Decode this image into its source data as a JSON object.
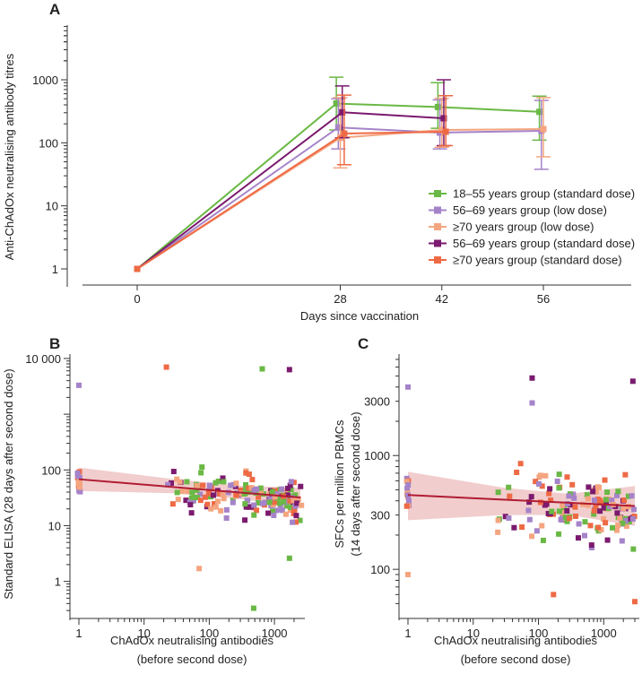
{
  "colors": {
    "green": "#6ab845",
    "lightpurple": "#a583c9",
    "salmon": "#f4a580",
    "purple": "#7b1a6e",
    "orange": "#ee6a45",
    "fitline": "#b01c33",
    "band": "#ecbcbc"
  },
  "chart_data": [
    {
      "panel": "A",
      "type": "line",
      "ylabel": "Anti-ChAdOx neutralising antibody titres",
      "xlabel": "Days since vaccination",
      "x": [
        0,
        28,
        42,
        56
      ],
      "x_tick_labels": [
        "0",
        "28",
        "42",
        "56"
      ],
      "y_scale": "log",
      "ylim": [
        0.8,
        5000
      ],
      "y_tick_labels": [
        "1",
        "10",
        "100",
        "1000"
      ],
      "series": [
        {
          "name": "18–55 years group (standard dose)",
          "color": "green",
          "values": [
            1,
            420,
            370,
            310
          ],
          "lower": [
            1,
            160,
            170,
            110
          ],
          "upper": [
            1,
            1100,
            900,
            550
          ]
        },
        {
          "name": "56–69 years group (low dose)",
          "color": "lightpurple",
          "values": [
            1,
            175,
            145,
            155
          ],
          "lower": [
            1,
            80,
            80,
            38
          ],
          "upper": [
            1,
            500,
            480,
            470
          ]
        },
        {
          "name": "≥70 years group (low dose)",
          "color": "salmon",
          "values": [
            1,
            120,
            160,
            165
          ],
          "lower": [
            1,
            40,
            85,
            60
          ],
          "upper": [
            1,
            520,
            510,
            520
          ]
        },
        {
          "name": "56–69 years group (standard dose)",
          "color": "purple",
          "values": [
            1,
            305,
            245,
            null
          ],
          "lower": [
            1,
            120,
            90,
            null
          ],
          "upper": [
            1,
            800,
            1000,
            null
          ]
        },
        {
          "name": "≥70 years group (standard dose)",
          "color": "orange",
          "values": [
            1,
            140,
            150,
            null
          ],
          "lower": [
            1,
            45,
            90,
            null
          ],
          "upper": [
            1,
            570,
            560,
            null
          ]
        }
      ]
    },
    {
      "panel": "B",
      "type": "scatter",
      "ylabel": "Standard ELISA (28 days after second dose)",
      "xlabel_line1": "ChAdOx neutralising antibodies",
      "xlabel_line2": "(before second dose)",
      "x_scale": "log",
      "y_scale": "log",
      "xlim": [
        0.7,
        3000
      ],
      "ylim": [
        0.2,
        13000
      ],
      "x_tick_labels": [
        "1",
        "10",
        "100",
        "1000"
      ],
      "y_tick_labels": [
        "1",
        "10",
        "100",
        "10 000"
      ],
      "fit_line": {
        "x": [
          1,
          2500
        ],
        "y": [
          68,
          32
        ]
      },
      "ci_band": {
        "x": [
          1,
          30,
          300,
          2500
        ],
        "lower": [
          42,
          38,
          30,
          21
        ],
        "upper": [
          110,
          68,
          52,
          48
        ]
      }
    },
    {
      "panel": "C",
      "type": "scatter",
      "ylabel_line1": "SFCs per million PBMCs",
      "ylabel_line2": "(14 days after second dose)",
      "xlabel_line1": "ChAdOx neutralising antibodies",
      "xlabel_line2": "(before second dose)",
      "x_scale": "log",
      "y_scale": "log",
      "xlim": [
        0.8,
        3500
      ],
      "ylim": [
        40,
        8000
      ],
      "x_tick_labels": [
        "1",
        "10",
        "100",
        "1000"
      ],
      "y_tick_labels": [
        "100",
        "300",
        "1000",
        "3000"
      ],
      "fit_line": {
        "x": [
          1,
          3000
        ],
        "y": [
          450,
          360
        ]
      },
      "ci_band": {
        "x": [
          1,
          30,
          300,
          3000
        ],
        "lower": [
          270,
          300,
          300,
          240
        ],
        "upper": [
          720,
          520,
          460,
          540
        ]
      }
    }
  ]
}
